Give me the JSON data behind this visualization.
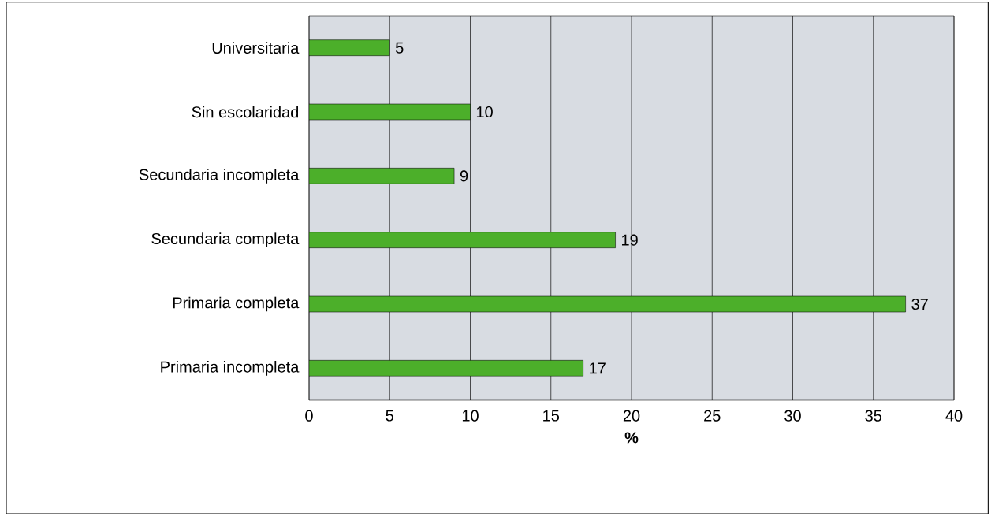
{
  "chart_data": {
    "type": "bar",
    "orientation": "horizontal",
    "xlabel": "%",
    "categories": [
      "Universitaria",
      "Sin escolaridad",
      "Secundaria incompleta",
      "Secundaria completa",
      "Primaria completa",
      "Primaria incompleta"
    ],
    "values": [
      5,
      10,
      9,
      19,
      37,
      17
    ],
    "color": "#4caf2a",
    "xlim": [
      0,
      40
    ],
    "xticks": [
      0,
      5,
      10,
      15,
      20,
      25,
      30,
      35,
      40
    ],
    "grid": "x",
    "data_labels": true
  }
}
